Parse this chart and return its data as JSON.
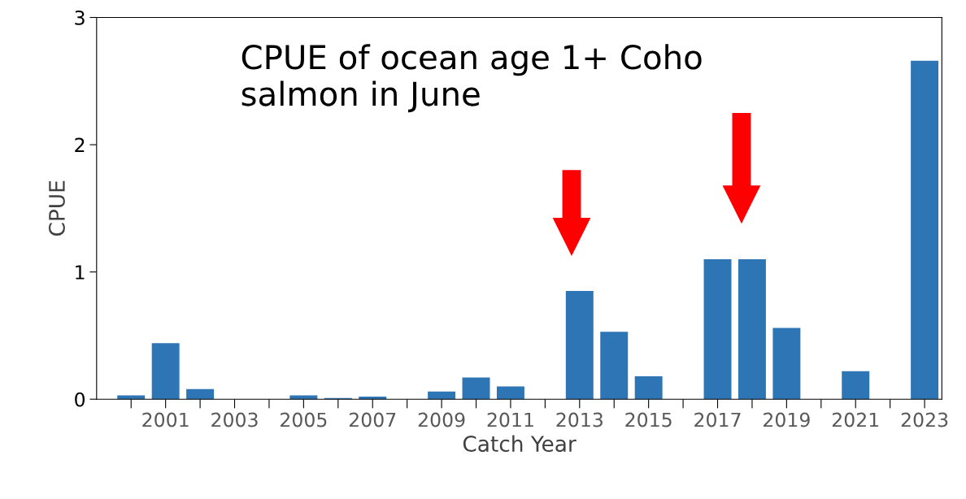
{
  "chart_data": {
    "type": "bar",
    "title": "CPUE of ocean age 1+ Coho\nsalmon in June",
    "xlabel": "Catch Year",
    "ylabel": "CPUE",
    "categories": [
      null,
      "2001",
      null,
      "2003",
      null,
      "2005",
      null,
      "2007",
      null,
      "2009",
      null,
      "2011",
      null,
      "2013",
      null,
      "2015",
      null,
      "2017",
      null,
      "2019",
      null,
      "2021",
      null,
      "2023"
    ],
    "values": [
      0.03,
      0.44,
      0.08,
      0,
      0,
      0.03,
      0.01,
      0.02,
      0,
      0.06,
      0.17,
      0.1,
      0,
      0.85,
      0.53,
      0.18,
      0,
      1.1,
      1.1,
      0.56,
      0,
      0.22,
      0,
      2.66
    ],
    "color": "#2e75b6",
    "ylim": [
      0,
      3
    ],
    "yticks": [
      0,
      1,
      2,
      3
    ],
    "grid": false
  }
}
